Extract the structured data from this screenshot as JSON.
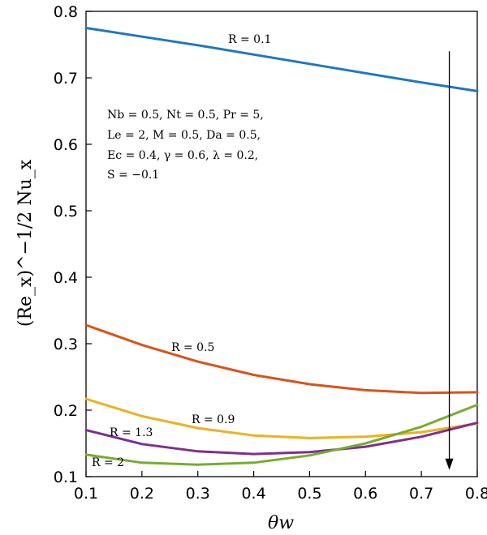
{
  "chart_data": {
    "type": "line",
    "xlabel": "θw",
    "ylabel": "(Re_x)^−1/2 Nu_x",
    "xlim": [
      0.1,
      0.8
    ],
    "ylim": [
      0.1,
      0.8
    ],
    "xticks": [
      "0.1",
      "0.2",
      "0.3",
      "0.4",
      "0.5",
      "0.6",
      "0.7",
      "0.8"
    ],
    "yticks": [
      "0.1",
      "0.2",
      "0.3",
      "0.4",
      "0.5",
      "0.6",
      "0.7",
      "0.8"
    ],
    "grid": false,
    "series": [
      {
        "name": "R = 0.1",
        "color": "#1f77bf",
        "x": [
          0.1,
          0.2,
          0.3,
          0.4,
          0.5,
          0.6,
          0.7,
          0.8
        ],
        "y": [
          0.775,
          0.762,
          0.749,
          0.735,
          0.721,
          0.707,
          0.693,
          0.68
        ]
      },
      {
        "name": "R = 0.5",
        "color": "#d95319",
        "x": [
          0.1,
          0.2,
          0.3,
          0.4,
          0.5,
          0.6,
          0.7,
          0.8
        ],
        "y": [
          0.328,
          0.298,
          0.273,
          0.253,
          0.239,
          0.23,
          0.226,
          0.227
        ]
      },
      {
        "name": "R = 0.9",
        "color": "#edb120",
        "x": [
          0.1,
          0.2,
          0.3,
          0.4,
          0.5,
          0.6,
          0.7,
          0.8
        ],
        "y": [
          0.217,
          0.191,
          0.173,
          0.162,
          0.158,
          0.16,
          0.167,
          0.18
        ]
      },
      {
        "name": "R = 1.3",
        "color": "#7e2f8e",
        "x": [
          0.1,
          0.2,
          0.3,
          0.4,
          0.5,
          0.6,
          0.7,
          0.8
        ],
        "y": [
          0.17,
          0.149,
          0.138,
          0.134,
          0.137,
          0.145,
          0.16,
          0.181
        ]
      },
      {
        "name": "R = 2",
        "color": "#77ac30",
        "x": [
          0.1,
          0.2,
          0.3,
          0.4,
          0.5,
          0.6,
          0.7,
          0.8
        ],
        "y": [
          0.133,
          0.121,
          0.118,
          0.121,
          0.132,
          0.15,
          0.175,
          0.208
        ]
      }
    ],
    "annotation": [
      "Nb = 0.5, Nt = 0.5, Pr = 5,",
      "Le = 2, M = 0.5, Da = 0.5,",
      "Ec = 0.4, γ = 0.6, λ = 0.2,",
      "S = −0.1"
    ],
    "arrow": {
      "x": 0.75,
      "y_from": 0.74,
      "y_to": 0.11,
      "meaning": "increasing R"
    }
  }
}
